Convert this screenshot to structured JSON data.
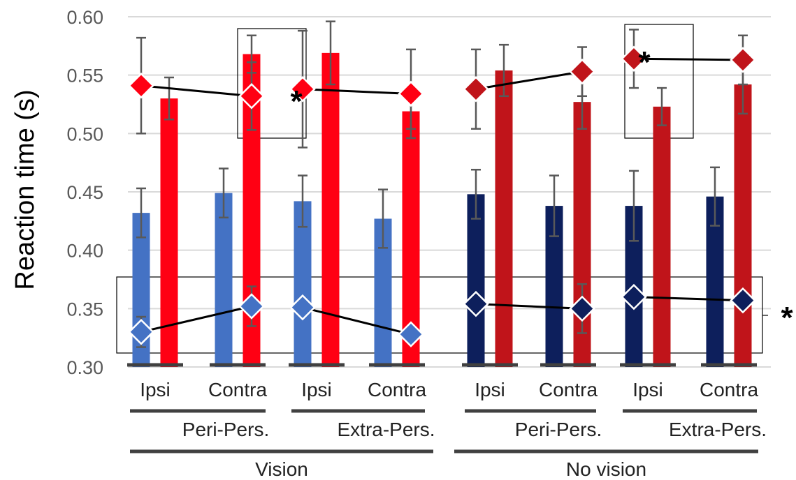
{
  "chart_data": {
    "type": "bar",
    "ylabel": "Reaction time (s)",
    "ylim": [
      0.3,
      0.6
    ],
    "yticks": [
      "0.30",
      "0.35",
      "0.40",
      "0.45",
      "0.50",
      "0.55",
      "0.60"
    ],
    "grid": true,
    "categories": [
      "Ipsi",
      "Contra",
      "Ipsi",
      "Contra",
      "Ipsi",
      "Contra",
      "Ipsi",
      "Contra"
    ],
    "groups_level2": [
      "Peri-Pers.",
      "Extra-Pers.",
      "Peri-Pers.",
      "Extra-Pers."
    ],
    "groups_level1": [
      "Vision",
      "No vision"
    ],
    "series": [
      {
        "kind": "bar",
        "colors": [
          "#4472c4",
          "#4472c4",
          "#4472c4",
          "#4472c4",
          "#0d1f5c",
          "#0d1f5c",
          "#0d1f5c",
          "#0d1f5c"
        ],
        "values": [
          0.432,
          0.449,
          0.442,
          0.427,
          0.448,
          0.438,
          0.438,
          0.446
        ],
        "errors": [
          0.021,
          0.021,
          0.022,
          0.025,
          0.021,
          0.026,
          0.03,
          0.025
        ]
      },
      {
        "kind": "bar",
        "colors": [
          "#ff0013",
          "#ff0013",
          "#ff0013",
          "#ff0013",
          "#c0141a",
          "#c0141a",
          "#c0141a",
          "#c0141a"
        ],
        "values": [
          0.53,
          0.568,
          0.569,
          0.519,
          0.554,
          0.527,
          0.523,
          0.542
        ],
        "errors": [
          0.018,
          0.016,
          0.027,
          0.015,
          0.022,
          0.023,
          0.016,
          0.025
        ]
      },
      {
        "kind": "diamond-line",
        "colors": [
          "#4472c4",
          "#4472c4",
          "#4472c4",
          "#4472c4",
          "#0d1f5c",
          "#0d1f5c",
          "#0d1f5c",
          "#0d1f5c"
        ],
        "values": [
          0.33,
          0.352,
          0.351,
          0.328,
          0.354,
          0.35,
          0.36,
          0.357
        ],
        "errors": [
          0.013,
          0.017,
          0,
          0,
          0,
          0.021,
          0,
          0
        ]
      },
      {
        "kind": "diamond-line",
        "colors": [
          "#ff0013",
          "#ff0013",
          "#ff0013",
          "#ff0013",
          "#c0141a",
          "#c0141a",
          "#c0141a",
          "#c0141a"
        ],
        "values": [
          0.541,
          0.532,
          0.538,
          0.534,
          0.538,
          0.553,
          0.564,
          0.563
        ],
        "errors": [
          0.041,
          0.029,
          0.05,
          0.038,
          0.034,
          0.021,
          0.025,
          0.021
        ]
      }
    ],
    "annotations": [
      {
        "text": "*",
        "near": "contra diamond, Vision Peri-Pers."
      },
      {
        "text": "*",
        "near": "ipsi diamond, No vision Extra-Pers."
      },
      {
        "text": "*",
        "near": "right of lower box (diamonds, all conditions)"
      }
    ]
  }
}
